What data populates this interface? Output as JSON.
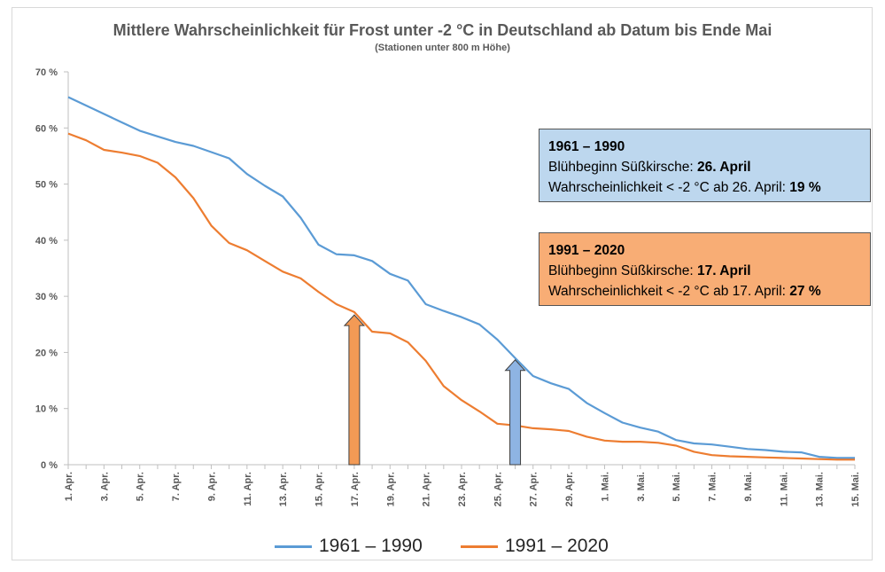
{
  "title": "Mittlere Wahrscheinlichkeit  für Frost unter -2 °C in Deutschland ab Datum bis Ende Mai",
  "subtitle": "(Stationen unter 800 m Höhe)",
  "colors": {
    "series1": "#5b9bd5",
    "series2": "#ed7d31",
    "box1": "#bdd7ee",
    "box2": "#f8ad75",
    "arrow1": "#8eb4e3",
    "arrow2": "#f39a55"
  },
  "box1": {
    "heading": "1961 – 1990",
    "line1_prefix": "Blühbeginn Süßkirsche: ",
    "line1_value": "26. April",
    "line2_prefix": "Wahrscheinlichkeit < -2 °C ab 26. April: ",
    "line2_value": "19 %"
  },
  "box2": {
    "heading": "1991 – 2020",
    "line1_prefix": "Blühbeginn Süßkirsche: ",
    "line1_value": "17. April",
    "line2_prefix": "Wahrscheinlichkeit < -2 °C ab 17. April: ",
    "line2_value": "27 %"
  },
  "chart_data": {
    "type": "line",
    "title": "Mittlere Wahrscheinlichkeit  für Frost unter -2 °C in Deutschland ab Datum bis Ende Mai",
    "subtitle": "(Stationen unter 800 m Höhe)",
    "ylim": [
      0,
      70
    ],
    "yticks": [
      "0 %",
      "10 %",
      "20 %",
      "30 %",
      "40 %",
      "50 %",
      "60 %",
      "70 %"
    ],
    "grid": false,
    "legend_position": "bottom",
    "categories": [
      "1. Apr.",
      "2. Apr.",
      "3. Apr.",
      "4. Apr.",
      "5. Apr.",
      "6. Apr.",
      "7. Apr.",
      "8. Apr.",
      "9. Apr.",
      "10. Apr.",
      "11. Apr.",
      "12. Apr.",
      "13. Apr.",
      "14. Apr.",
      "15. Apr.",
      "16. Apr.",
      "17. Apr.",
      "18. Apr.",
      "19. Apr.",
      "20. Apr.",
      "21. Apr.",
      "22. Apr.",
      "23. Apr.",
      "24. Apr.",
      "25. Apr.",
      "26. Apr.",
      "27. Apr.",
      "28. Apr.",
      "29. Apr.",
      "30. Apr.",
      "1. Mai.",
      "2. Mai.",
      "3. Mai.",
      "4. Mai.",
      "5. Mai.",
      "6. Mai.",
      "7. Mai.",
      "8. Mai.",
      "9. Mai.",
      "10. Mai.",
      "11. Mai.",
      "12. Mai.",
      "13. Mai.",
      "14. Mai.",
      "15. Mai."
    ],
    "xtick_labels": [
      "1. Apr.",
      "3. Apr.",
      "5. Apr.",
      "7. Apr.",
      "9. Apr.",
      "11. Apr.",
      "13. Apr.",
      "15. Apr.",
      "17. Apr.",
      "19. Apr.",
      "21. Apr.",
      "23. Apr.",
      "25. Apr.",
      "27. Apr.",
      "29. Apr.",
      "1. Mai.",
      "3. Mai.",
      "5. Mai.",
      "7. Mai.",
      "9. Mai.",
      "11. Mai.",
      "13. Mai.",
      "15. Mai."
    ],
    "series": [
      {
        "name": "1961 – 1990",
        "values": [
          65.5,
          64,
          62.5,
          61,
          59.5,
          58.5,
          57.5,
          56.8,
          55.7,
          54.6,
          51.8,
          49.7,
          47.8,
          44,
          39.2,
          37.5,
          37.3,
          36.3,
          34,
          32.8,
          28.6,
          27.4,
          26.3,
          25,
          22.3,
          19,
          15.8,
          14.5,
          13.5,
          11,
          9.2,
          7.5,
          6.6,
          5.9,
          4.4,
          3.8,
          3.6,
          3.2,
          2.8,
          2.6,
          2.3,
          2.2,
          1.4,
          1.2,
          1.2
        ]
      },
      {
        "name": "1991 – 2020",
        "values": [
          59,
          57.8,
          56.1,
          55.6,
          55,
          53.8,
          51.2,
          47.5,
          42.6,
          39.5,
          38.2,
          36.3,
          34.4,
          33.2,
          30.8,
          28.6,
          27.2,
          23.7,
          23.4,
          21.8,
          18.5,
          14,
          11.5,
          9.5,
          7.3,
          7,
          6.5,
          6.3,
          6,
          5,
          4.3,
          4.1,
          4.1,
          3.9,
          3.4,
          2.3,
          1.7,
          1.5,
          1.4,
          1.3,
          1.2,
          1.1,
          1,
          0.9,
          0.9
        ]
      }
    ],
    "annotations": [
      {
        "type": "arrow",
        "x": "17. Apr.",
        "value": 27,
        "color": "#f39a55"
      },
      {
        "type": "arrow",
        "x": "26. Apr.",
        "value": 19,
        "color": "#8eb4e3"
      }
    ]
  }
}
